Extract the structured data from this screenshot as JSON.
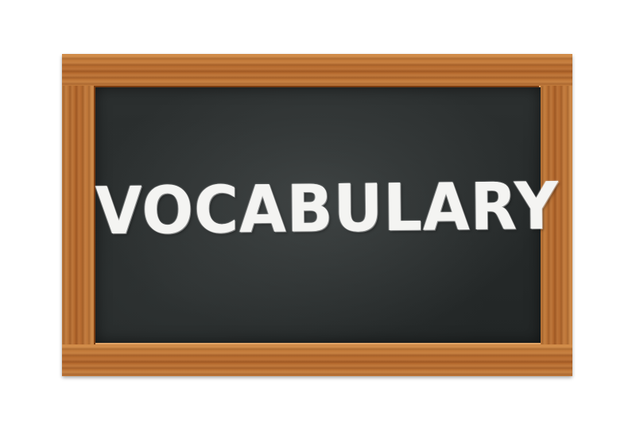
{
  "board": {
    "word": "VOCABULARY"
  },
  "colors": {
    "background": "#ffffff",
    "frame_wood": "#b5692b",
    "chalkboard": "#262a2a",
    "chalk": "#f4f4f2"
  }
}
